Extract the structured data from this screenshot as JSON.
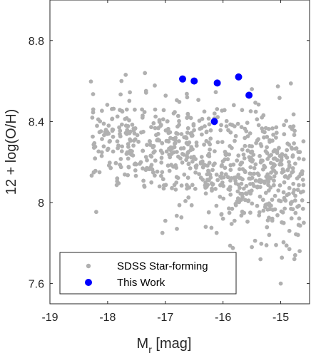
{
  "chart_data": {
    "type": "scatter",
    "title": "",
    "xlabel": "M",
    "xlabel_sub": "r",
    "xlabel_unit": " [mag]",
    "ylabel": "12 + log(O/H)",
    "xlim": [
      -19,
      -14.5
    ],
    "ylim": [
      7.5,
      9.0
    ],
    "x_ticks": [
      -19,
      -18,
      -17,
      -16,
      -15
    ],
    "x_tick_labels": [
      "-19",
      "-18",
      "-17",
      "-16",
      "-15"
    ],
    "y_ticks": [
      7.6,
      8.0,
      8.4,
      8.8
    ],
    "y_tick_labels": [
      "7.6",
      "8",
      "8.4",
      "8.8"
    ],
    "grid": false,
    "legend_position": "bottom-left",
    "series": [
      {
        "name": "SDSS Star-forming",
        "color": "#b0b0b0",
        "marker": "small-circle",
        "approximate_cloud": {
          "n_points": 750,
          "x_range": [
            -18.3,
            -14.6
          ],
          "y_center_at_x_min": 8.32,
          "y_center_at_x_max": 8.12,
          "y_spread": 0.12
        },
        "outliers": [
          [
            -17.76,
            8.6
          ],
          [
            -18.25,
            8.46
          ],
          [
            -15.5,
            8.56
          ],
          [
            -17.0,
            7.91
          ],
          [
            -16.8,
            7.87
          ],
          [
            -15.2,
            7.84
          ],
          [
            -15.5,
            7.78
          ],
          [
            -14.85,
            7.86
          ],
          [
            -14.7,
            7.84
          ],
          [
            -14.6,
            7.9
          ],
          [
            -14.85,
            7.77
          ],
          [
            -14.75,
            7.74
          ],
          [
            -15.35,
            7.72
          ],
          [
            -15.0,
            7.6
          ],
          [
            -14.95,
            7.5
          ],
          [
            -15.3,
            7.96
          ],
          [
            -15.8,
            7.91
          ],
          [
            -16.0,
            7.92
          ],
          [
            -16.3,
            7.88
          ],
          [
            -17.05,
            7.85
          ]
        ]
      },
      {
        "name": "This Work",
        "color": "#0000ff",
        "marker": "large-circle",
        "x": [
          -16.7,
          -16.5,
          -16.1,
          -15.73,
          -15.55,
          -16.15
        ],
        "y": [
          8.61,
          8.6,
          8.59,
          8.62,
          8.53,
          8.4
        ]
      }
    ]
  }
}
